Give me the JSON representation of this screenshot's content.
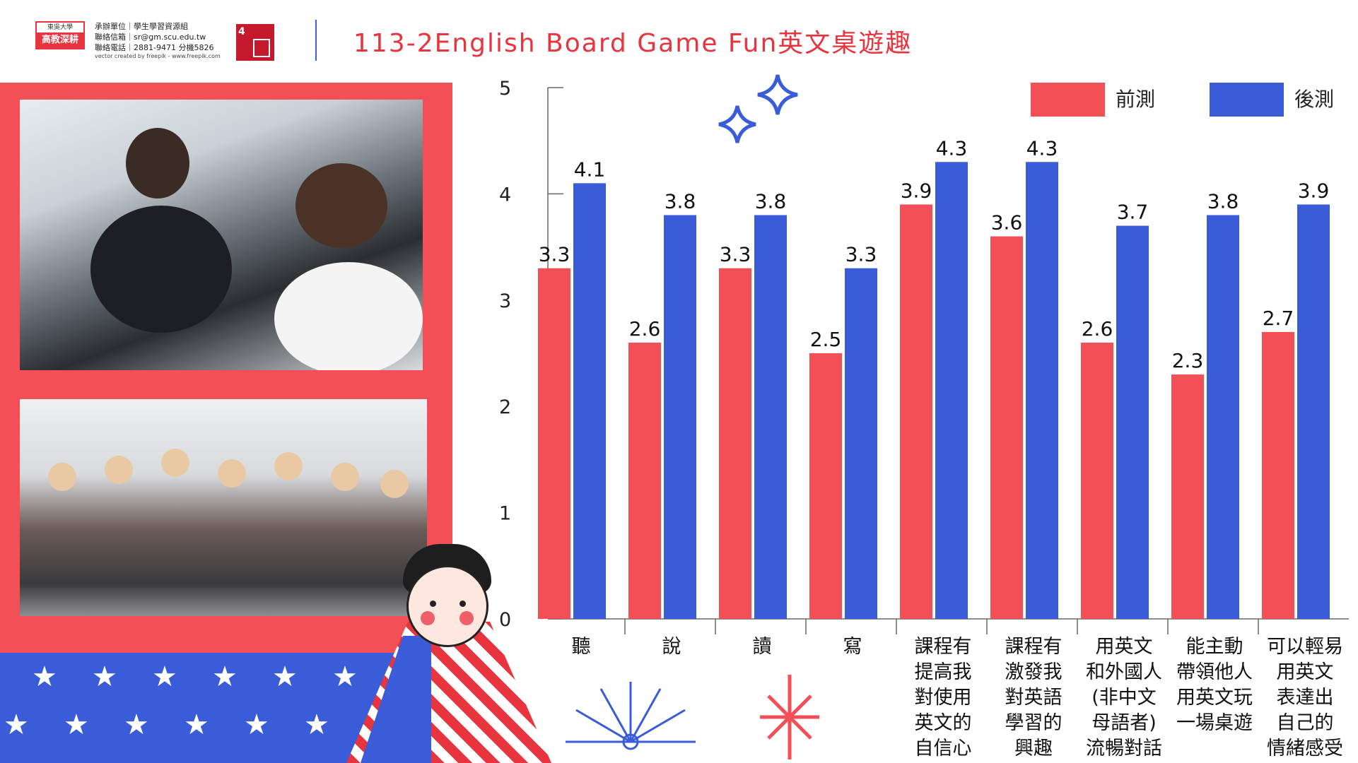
{
  "header": {
    "logo_top": "東吳大學",
    "logo_main": "高教深耕",
    "contact_unit": "承辦單位｜學生學習資源組",
    "contact_email": "聯絡信箱｜sr@gm.scu.edu.tw",
    "contact_phone": "聯絡電話｜2881-9471 分機5826",
    "credit": "vector created by freepik - www.freepik.com",
    "sdg_number": "4",
    "title": "113-2English Board Game Fun英文桌遊趣"
  },
  "colors": {
    "pre": "#f25056",
    "post": "#3a5cd8",
    "title": "#e8343e"
  },
  "chart_data": {
    "type": "bar",
    "categories": [
      "聽",
      "說",
      "讀",
      "寫",
      "課程有提高我對使用英文的自信心",
      "課程有激發我對英語學習的興趣",
      "用英文和外國人(非中文母語者)流暢對話",
      "能主動帶領他人用英文玩一場桌遊",
      "可以輕易用英文表達出自己的情緒感受"
    ],
    "category_lines": [
      [
        "聽"
      ],
      [
        "說"
      ],
      [
        "讀"
      ],
      [
        "寫"
      ],
      [
        "課程有",
        "提高我",
        "對使用",
        "英文的",
        "自信心"
      ],
      [
        "課程有",
        "激發我",
        "對英語",
        "學習的",
        "興趣"
      ],
      [
        "用英文",
        "和外國人",
        "(非中文",
        "母語者)",
        "流暢對話"
      ],
      [
        "能主動",
        "帶領他人",
        "用英文玩",
        "一場桌遊"
      ],
      [
        "可以輕易",
        "用英文",
        "表達出",
        "自己的",
        "情緒感受"
      ]
    ],
    "series": [
      {
        "name": "前測",
        "values": [
          3.3,
          2.6,
          3.3,
          2.5,
          3.9,
          3.6,
          2.6,
          2.3,
          2.7
        ]
      },
      {
        "name": "後測",
        "values": [
          4.1,
          3.8,
          3.8,
          3.3,
          4.3,
          4.3,
          3.7,
          3.8,
          3.9
        ]
      }
    ],
    "value_labels": [
      [
        "3.3",
        "2.6",
        "3.3",
        "2.5",
        "3.9",
        "3.6",
        "2.6",
        "2.3",
        "2.7"
      ],
      [
        "4.1",
        "3.8",
        "3.8",
        "3.3",
        "4.3",
        "4.3",
        "3.7",
        "3.8",
        "3.9"
      ]
    ],
    "yticks": [
      "0",
      "1",
      "2",
      "3",
      "4",
      "5"
    ],
    "ylim": [
      0,
      5
    ],
    "legend_position": "top-right",
    "grid": false
  }
}
